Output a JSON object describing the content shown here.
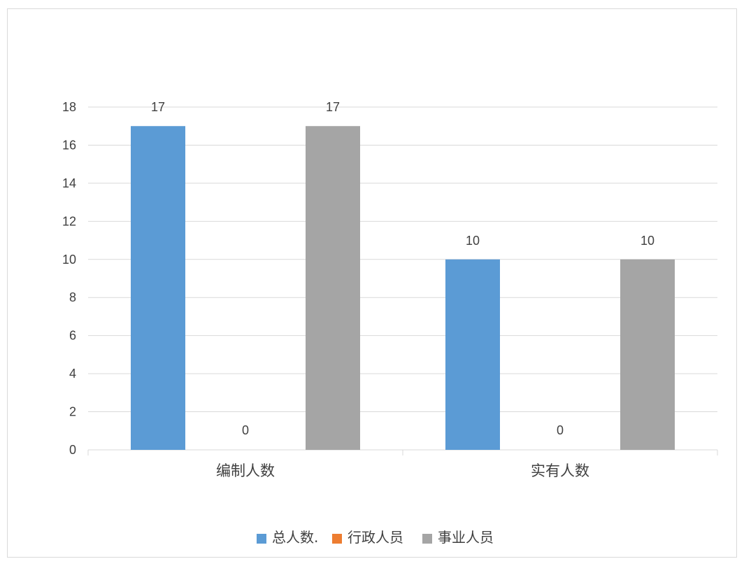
{
  "chart_data": {
    "type": "bar",
    "title": "",
    "xlabel": "",
    "ylabel": "",
    "categories": [
      "编制人数",
      "实有人数"
    ],
    "series": [
      {
        "name": "总人数.",
        "values": [
          17,
          10
        ],
        "color": "#5b9bd5"
      },
      {
        "name": "行政人员",
        "values": [
          0,
          0
        ],
        "color": "#ed7d31"
      },
      {
        "name": "事业人员",
        "values": [
          17,
          10
        ],
        "color": "#a5a5a5"
      }
    ],
    "ylim": [
      0,
      18
    ],
    "yticks": [
      0,
      2,
      4,
      6,
      8,
      10,
      12,
      14,
      16,
      18
    ],
    "grid": true,
    "legend_position": "bottom",
    "data_labels": true
  }
}
